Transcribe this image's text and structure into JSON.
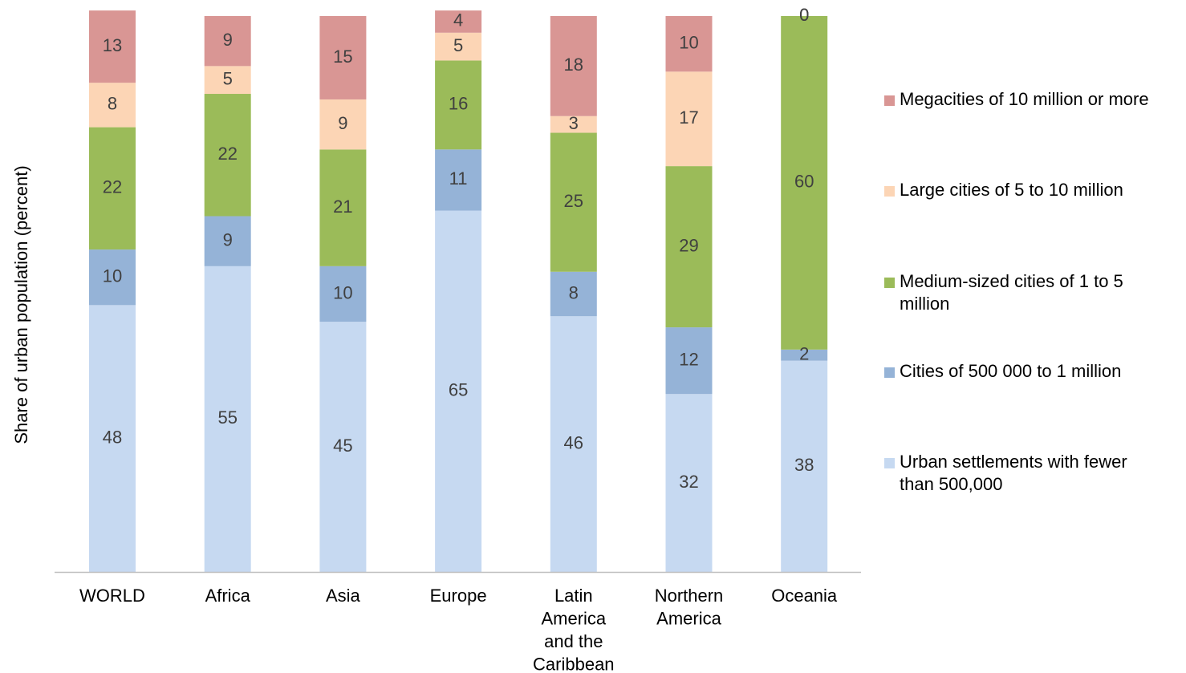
{
  "chart_data": {
    "type": "bar",
    "stacked": true,
    "title": "",
    "xlabel": "",
    "ylabel": "Share of urban population (percent)",
    "ylim": [
      0,
      100
    ],
    "grid": false,
    "legend_position": "right",
    "categories": [
      "WORLD",
      "Africa",
      "Asia",
      "Europe",
      "Latin America and the Caribbean",
      "Northern America",
      "Oceania"
    ],
    "category_lines": [
      [
        "WORLD"
      ],
      [
        "Africa"
      ],
      [
        "Asia"
      ],
      [
        "Europe"
      ],
      [
        "Latin",
        "America",
        "and the",
        "Caribbean"
      ],
      [
        "Northern",
        "America"
      ],
      [
        "Oceania"
      ]
    ],
    "series": [
      {
        "name": "Urban settlements with fewer than 500,000",
        "color": "#c6d9f1",
        "values": [
          48,
          55,
          45,
          65,
          46,
          32,
          38
        ]
      },
      {
        "name": "Cities of 500 000 to 1 million",
        "color": "#95b3d7",
        "values": [
          10,
          9,
          10,
          11,
          8,
          12,
          2
        ]
      },
      {
        "name": "Medium-sized cities of 1 to 5 million",
        "color": "#9bbb59",
        "values": [
          22,
          22,
          21,
          16,
          25,
          29,
          60
        ]
      },
      {
        "name": "Large cities of 5 to 10 million",
        "color": "#fcd5b5",
        "values": [
          8,
          5,
          9,
          5,
          3,
          17,
          0
        ]
      },
      {
        "name": "Megacities of 10 million or more",
        "color": "#d99694",
        "values": [
          13,
          9,
          15,
          4,
          18,
          10,
          0
        ]
      }
    ],
    "legend": [
      {
        "lines": [
          "Megacities of 10 million or more"
        ],
        "color": "#d99694"
      },
      {
        "lines": [
          "Large cities of 5 to 10 million"
        ],
        "color": "#fcd5b5"
      },
      {
        "lines": [
          "Medium-sized cities of 1 to 5",
          "million"
        ],
        "color": "#9bbb59"
      },
      {
        "lines": [
          "Cities of 500 000 to 1 million"
        ],
        "color": "#95b3d7"
      },
      {
        "lines": [
          "Urban settlements with fewer",
          "than 500,000"
        ],
        "color": "#c6d9f1"
      }
    ]
  }
}
